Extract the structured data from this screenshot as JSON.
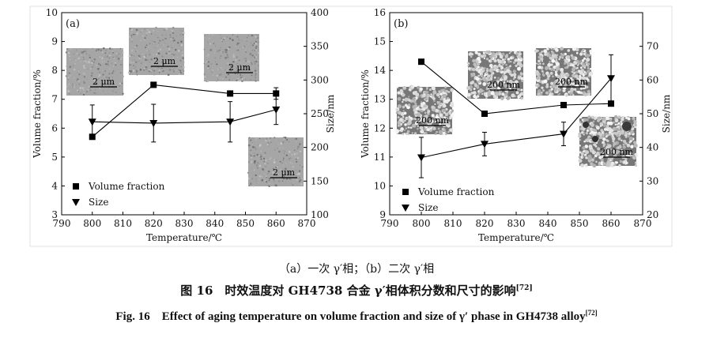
{
  "chart_data": [
    {
      "type": "line",
      "panel_label": "(a)",
      "x": [
        800,
        820,
        845,
        860
      ],
      "xlim": [
        790,
        870
      ],
      "xticks": [
        790,
        800,
        810,
        820,
        830,
        840,
        850,
        860,
        870
      ],
      "xlabel": "Temperature/℃",
      "ylabel_left": "Volume fraction/%",
      "ylim_left": [
        3,
        10
      ],
      "yticks_left": [
        3,
        4,
        5,
        6,
        7,
        8,
        9,
        10
      ],
      "ylabel_right": "Size/nm",
      "ylim_right": [
        100,
        400
      ],
      "yticks_right": [
        100,
        150,
        200,
        250,
        300,
        350,
        400
      ],
      "series": [
        {
          "name": "Volume fraction",
          "marker": "square",
          "axis": "left",
          "values": [
            5.7,
            7.5,
            7.2,
            7.2
          ],
          "errors": [
            0,
            0,
            0,
            0.2
          ]
        },
        {
          "name": "Size",
          "marker": "triangle-down",
          "axis": "right",
          "values": [
            238,
            236,
            238,
            256
          ],
          "errors": [
            25,
            28,
            30,
            22
          ]
        }
      ],
      "micrographs": [
        "2 μm",
        "2 μm",
        "2 μm",
        "2 μm"
      ]
    },
    {
      "type": "line",
      "panel_label": "(b)",
      "x": [
        800,
        820,
        845,
        860
      ],
      "xlim": [
        790,
        870
      ],
      "xticks": [
        790,
        800,
        810,
        820,
        830,
        840,
        850,
        860,
        870
      ],
      "xlabel": "Temperature/℃",
      "ylabel_left": "Volume fraction/%",
      "ylim_left": [
        9,
        16
      ],
      "yticks_left": [
        9,
        10,
        11,
        12,
        13,
        14,
        15,
        16
      ],
      "ylabel_right": "Size/nm",
      "ylim_right": [
        20,
        80
      ],
      "yticks_right": [
        20,
        30,
        40,
        50,
        60,
        70
      ],
      "series": [
        {
          "name": "Volume fraction",
          "marker": "square",
          "axis": "left",
          "values": [
            14.3,
            12.5,
            12.8,
            12.85
          ],
          "errors": [
            0,
            0,
            0,
            0
          ]
        },
        {
          "name": "Size",
          "marker": "triangle-down",
          "axis": "right",
          "values": [
            37,
            41,
            44,
            60.5
          ],
          "errors": [
            6,
            3.5,
            3.5,
            7
          ]
        }
      ],
      "micrographs": [
        "200 nm",
        "200 nm",
        "200 nm",
        "200 nm"
      ]
    }
  ],
  "captions": {
    "sub": "（a）一次 γ′相；（b）二次 γ′相",
    "cn": "图 16　时效温度对 GH4738 合金 γ′相体积分数和尺寸的影响",
    "cn_ref": "[72]",
    "en": "Fig. 16　Effect of aging temperature on volume fraction and size of γ′ phase in GH4738 alloy",
    "en_ref": "[72]"
  }
}
